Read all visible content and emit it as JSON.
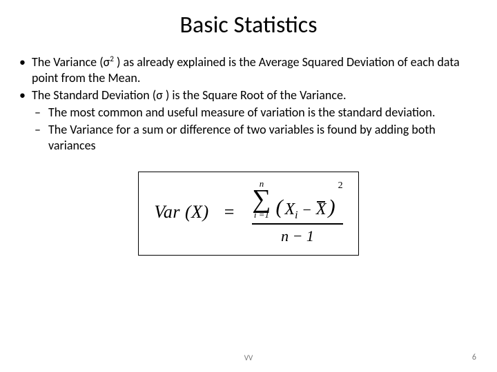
{
  "title": "Basic Statistics",
  "bullets": {
    "b1_pre": "The Variance (",
    "sigma": "σ",
    "sup2": "2",
    "b1_post": " ) as already explained is the Average Squared Deviation of each data point from the Mean.",
    "b2_pre": "The Standard Deviation (",
    "b2_post": " ) is the Square Root of the Variance.",
    "sub1": "The most common and useful measure of variation is the standard deviation.",
    "sub2": "The Variance for a sum or difference of two variables is found by adding both variances"
  },
  "formula": {
    "lhs": "Var (X)",
    "eq": "=",
    "sum_top": "n",
    "sum_sym": "∑",
    "sum_bot": "i =1",
    "lparen": "(",
    "xi_x": "X",
    "xi_i": "i",
    "minus": "−",
    "xbar": "X",
    "rparen": ")",
    "sq": "2",
    "den_n": "n",
    "den_minus": "−",
    "den_one": "1",
    "box_border_color": "#000000",
    "font": "Times New Roman"
  },
  "footer": {
    "center": "VV",
    "page": "6"
  },
  "colors": {
    "text": "#000000",
    "bg": "#ffffff",
    "footer": "#777777"
  }
}
